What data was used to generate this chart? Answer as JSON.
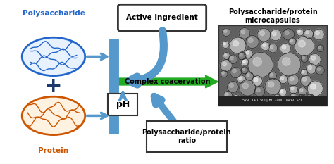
{
  "bg_color": "#ffffff",
  "polysaccharide_label": "Polysaccharide",
  "polysaccharide_color": "#2266cc",
  "protein_label": "Protein",
  "protein_color": "#cc5500",
  "plus_color": "#1a3a6b",
  "active_ingredient_label": "Active ingredient",
  "complex_coacervation_label": "Complex coacervation",
  "ph_label": "pH",
  "ratio_label": "Polysaccharide/protein\nratio",
  "microcapsule_label": "Polysaccharide/protein\nmicrocapsules",
  "arrow_color": "#5599cc",
  "green_color": "#22aa22"
}
